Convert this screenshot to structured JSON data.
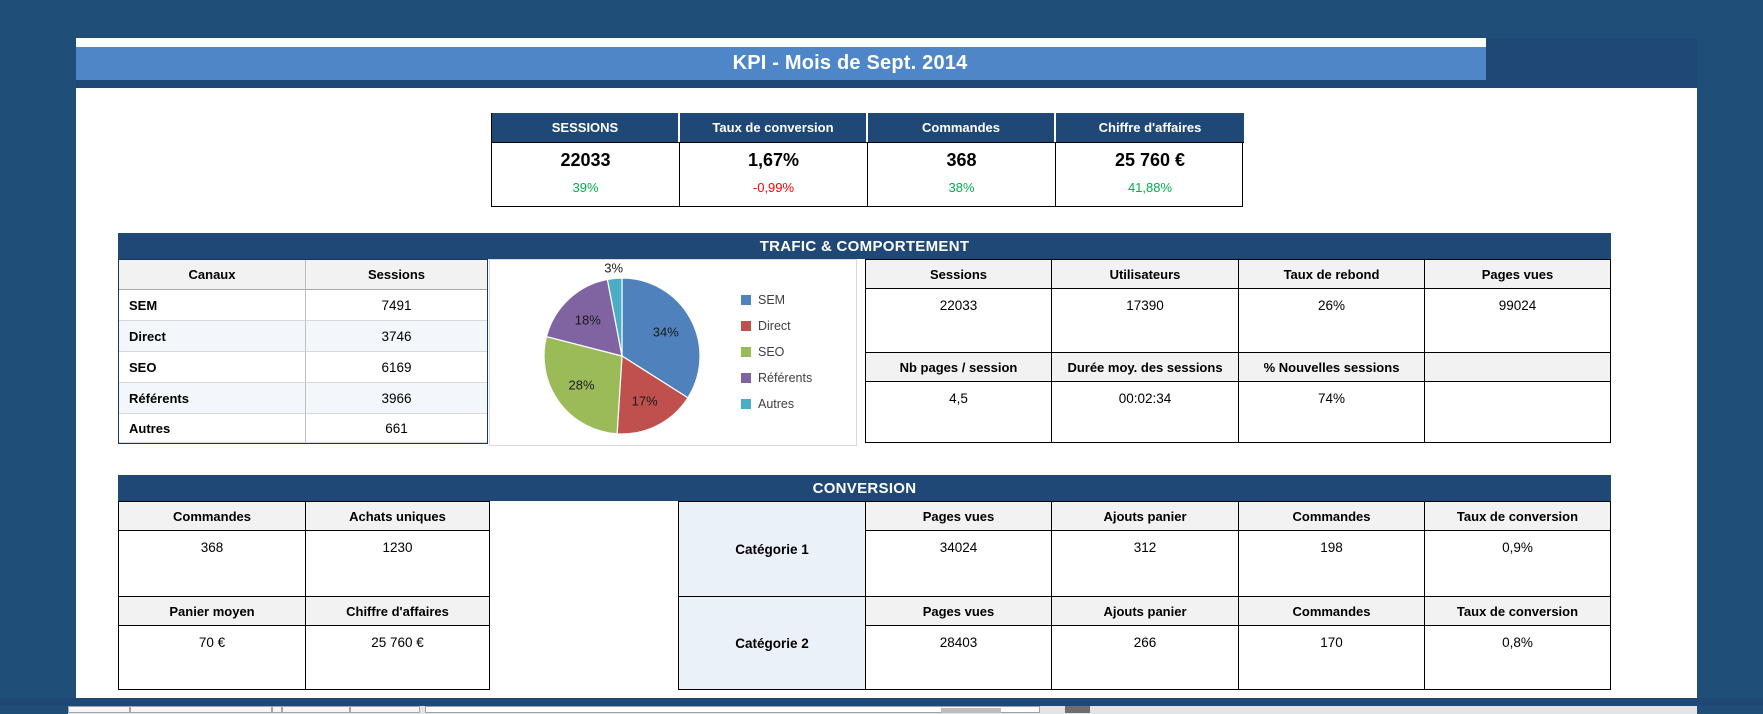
{
  "title": "KPI - Mois de Sept. 2014",
  "summary": {
    "columns": [
      {
        "label": "SESSIONS",
        "value": "22033",
        "delta": "39%",
        "delta_color": "#00B050"
      },
      {
        "label": "Taux de conversion",
        "value": "1,67%",
        "delta": "-0,99%",
        "delta_color": "#FF0000"
      },
      {
        "label": "Commandes",
        "value": "368",
        "delta": "38%",
        "delta_color": "#00B050"
      },
      {
        "label": "Chiffre d'affaires",
        "value": "25 760 €",
        "delta": "41,88%",
        "delta_color": "#00B050"
      }
    ]
  },
  "trafic": {
    "section_title": "TRAFIC & COMPORTEMENT",
    "channels_table": {
      "headers": [
        "Canaux",
        "Sessions"
      ],
      "rows": [
        [
          "SEM",
          "7491"
        ],
        [
          "Direct",
          "3746"
        ],
        [
          "SEO",
          "6169"
        ],
        [
          "Référents",
          "3966"
        ],
        [
          "Autres",
          "661"
        ]
      ]
    },
    "stats_top": {
      "headers": [
        "Sessions",
        "Utilisateurs",
        "Taux de rebond",
        "Pages vues"
      ],
      "values": [
        "22033",
        "17390",
        "26%",
        "99024"
      ]
    },
    "stats_bottom": {
      "headers": [
        "Nb pages / session",
        "Durée moy. des sessions",
        "% Nouvelles sessions",
        ""
      ],
      "values": [
        "4,5",
        "00:02:34",
        "74%",
        ""
      ]
    }
  },
  "chart_data": {
    "type": "pie",
    "title": "",
    "categories": [
      "SEM",
      "Direct",
      "SEO",
      "Référents",
      "Autres"
    ],
    "values": [
      34,
      17,
      28,
      18,
      3
    ],
    "labels": [
      "34%",
      "17%",
      "28%",
      "18%",
      "3%"
    ],
    "unit": "%",
    "colors": [
      "#4F81BD",
      "#C0504D",
      "#9BBB59",
      "#8064A2",
      "#4BACC6"
    ],
    "legend_position": "right",
    "label_outside_index": 4
  },
  "conversion": {
    "section_title": "CONVERSION",
    "left_table": {
      "blocks": [
        {
          "headers": [
            "Commandes",
            "Achats uniques"
          ],
          "values": [
            "368",
            "1230"
          ]
        },
        {
          "headers": [
            "Panier moyen",
            "Chiffre d'affaires"
          ],
          "values": [
            "70 €",
            "25 760 €"
          ]
        }
      ]
    },
    "right_table": {
      "blocks": [
        {
          "category": "Catégorie 1",
          "headers": [
            "Pages vues",
            "Ajouts panier",
            "Commandes",
            "Taux de conversion"
          ],
          "values": [
            "34024",
            "312",
            "198",
            "0,9%"
          ]
        },
        {
          "category": "Catégorie 2",
          "headers": [
            "Pages vues",
            "Ajouts panier",
            "Commandes",
            "Taux de conversion"
          ],
          "values": [
            "28403",
            "266",
            "170",
            "0,8%"
          ]
        }
      ]
    }
  },
  "colors": {
    "frame_navy": "#1F4E79",
    "bar_navy": "#1F4876",
    "title_blue": "#4E86C8",
    "positive_green": "#00B050",
    "negative_red": "#FF0000",
    "header_gray": "#F2F2F2",
    "category_blue": "#EAF1F8",
    "row_alt_blue": "#F3F6FA"
  }
}
